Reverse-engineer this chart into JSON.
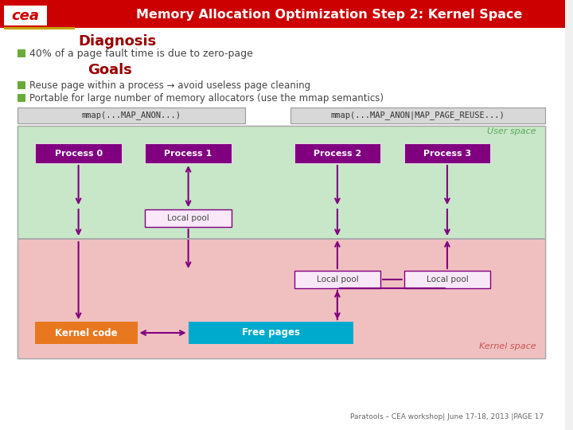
{
  "title": "Memory Allocation Optimization Step 2: Kernel Space",
  "header_bg": "#cc0000",
  "header_text_color": "#ffffff",
  "bg_color": "#f0f0f0",
  "diagnosis_title": "Diagnosis",
  "diagnosis_color": "#990000",
  "diagnosis_bullet": "40% of a page fault time is due to zero-page",
  "goals_title": "Goals",
  "goals_color": "#990000",
  "goals_bullets": [
    "Reuse page within a process → avoid useless page cleaning",
    "Portable for large number of memory allocators (use the mmap semantics)"
  ],
  "bullet_color": "#6aaa3a",
  "mmap_left": "mmap(...MAP_ANON...)",
  "mmap_right": "mmap(...MAP_ANON|MAP_PAGE_REUSE...)",
  "mmap_box_bg": "#d8d8d8",
  "mmap_text_color": "#333333",
  "user_space_bg": "#c8e6c8",
  "user_space_label": "User space",
  "user_space_label_color": "#5aaa5a",
  "kernel_space_bg": "#f0c0c0",
  "kernel_space_label": "Kernel space",
  "kernel_space_label_color": "#cc5555",
  "process_box_color": "#800080",
  "process_text_color": "#ffffff",
  "local_pool_bg": "#f8e8f8",
  "local_pool_border": "#800080",
  "kernel_code_bg": "#e87820",
  "kernel_code_text": "#ffffff",
  "free_pages_bg": "#00aacc",
  "free_pages_text": "#ffffff",
  "arrow_color": "#800080",
  "footer": "Paratools – CEA workshop| June 17-18, 2013 |PAGE 17"
}
